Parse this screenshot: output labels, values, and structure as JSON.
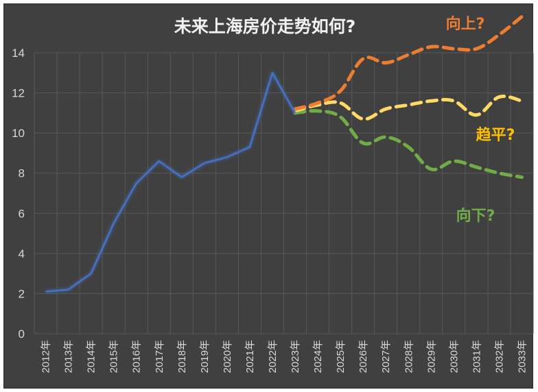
{
  "chart_data": {
    "type": "line",
    "title": "未来上海房价走势如何?",
    "xlabel": "",
    "ylabel": "",
    "ylim": [
      0,
      14
    ],
    "yticks": [
      0,
      2,
      4,
      6,
      8,
      10,
      12,
      14
    ],
    "grid": true,
    "categories": [
      "2012年",
      "2013年",
      "2014年",
      "2015年",
      "2016年",
      "2017年",
      "2018年",
      "2019年",
      "2020年",
      "2021年",
      "2022年",
      "2023年",
      "2024年",
      "2025年",
      "2026年",
      "2027年",
      "2028年",
      "2029年",
      "2030年",
      "2031年",
      "2032年",
      "2033年"
    ],
    "series": [
      {
        "values": [
          2.1,
          2.2,
          3.0,
          5.5,
          7.5,
          8.6,
          7.8,
          8.5,
          8.8,
          9.3,
          13.0,
          11.0,
          null,
          null,
          null,
          null,
          null,
          null,
          null,
          null,
          null,
          null
        ]
      },
      {
        "values": [
          null,
          null,
          null,
          null,
          null,
          null,
          null,
          null,
          null,
          null,
          null,
          11.2,
          11.5,
          12.1,
          13.7,
          13.5,
          13.9,
          14.3,
          14.2,
          14.2,
          14.9,
          15.8
        ]
      },
      {
        "values": [
          null,
          null,
          null,
          null,
          null,
          null,
          null,
          null,
          null,
          null,
          null,
          11.1,
          11.4,
          11.5,
          10.7,
          11.2,
          11.4,
          11.6,
          11.6,
          10.9,
          11.8,
          11.6
        ]
      },
      {
        "values": [
          null,
          null,
          null,
          null,
          null,
          null,
          null,
          null,
          null,
          null,
          null,
          11.0,
          11.1,
          10.8,
          9.5,
          9.8,
          9.3,
          8.2,
          8.6,
          8.3,
          8.0,
          7.8
        ]
      }
    ],
    "series_colors": [
      "#4472c4",
      "#ed7d31",
      "#ffd966",
      "#70ad47"
    ],
    "annotations": [
      {
        "text": "向上?",
        "color": "#ed7d31"
      },
      {
        "text": "趋平?",
        "color": "#ffc000"
      },
      {
        "text": "向下?",
        "color": "#70ad47"
      }
    ]
  }
}
